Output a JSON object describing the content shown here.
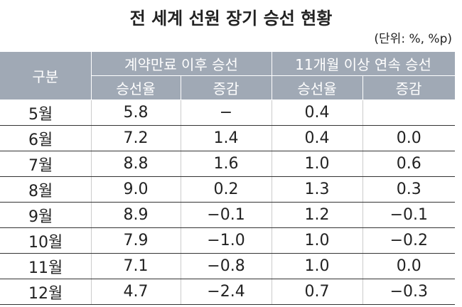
{
  "title": "전 세계 선원 장기 승선 현황",
  "unit": "(단위: %, %p)",
  "table": {
    "header": {
      "group_label": "구분",
      "groups": [
        "계약만료 이후 승선",
        "11개월 이상 연속 승선"
      ],
      "subheaders": [
        "승선율",
        "증감",
        "승선율",
        "증감"
      ]
    },
    "rows": [
      [
        "5월",
        "5.8",
        "−",
        "0.4",
        null
      ],
      [
        "6월",
        "7.2",
        "1.4",
        "0.4",
        "0.0"
      ],
      [
        "7월",
        "8.8",
        "1.6",
        "1.0",
        "0.6"
      ],
      [
        "8월",
        "9.0",
        "0.2",
        "1.3",
        "0.3"
      ],
      [
        "9월",
        "8.9",
        "−0.1",
        "1.2",
        "−0.1"
      ],
      [
        "10월",
        "7.9",
        "−1.0",
        "1.0",
        "−0.2"
      ],
      [
        "11월",
        "7.1",
        "−0.8",
        "1.0",
        "0.0"
      ],
      [
        "12월",
        "4.7",
        "−2.4",
        "0.7",
        "−0.3"
      ]
    ]
  }
}
